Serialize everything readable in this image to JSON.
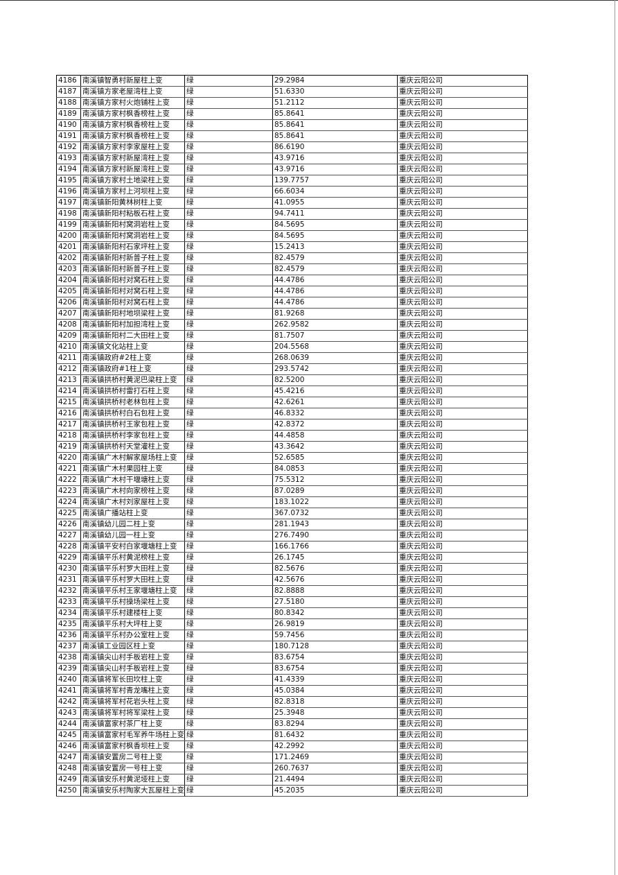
{
  "table": {
    "rows": [
      [
        "4186",
        "南溪镇智勇村新屋柱上变",
        "绿",
        "29.2984",
        "重庆云阳公司"
      ],
      [
        "4187",
        "南溪镇方家老屋湾柱上变",
        "绿",
        "51.6330",
        "重庆云阳公司"
      ],
      [
        "4188",
        "南溪镇方家村火炮铺柱上变",
        "绿",
        "51.2112",
        "重庆云阳公司"
      ],
      [
        "4189",
        "南溪镇方家村枫香榜柱上变",
        "绿",
        "85.8641",
        "重庆云阳公司"
      ],
      [
        "4190",
        "南溪镇方家村枫香榜柱上变",
        "绿",
        "85.8641",
        "重庆云阳公司"
      ],
      [
        "4191",
        "南溪镇方家村枫香榜柱上变",
        "绿",
        "85.8641",
        "重庆云阳公司"
      ],
      [
        "4192",
        "南溪镇方家村李家屋柱上变",
        "绿",
        "86.6190",
        "重庆云阳公司"
      ],
      [
        "4193",
        "南溪镇方家村新屋湾柱上变",
        "绿",
        "43.9716",
        "重庆云阳公司"
      ],
      [
        "4194",
        "南溪镇方家村新屋湾柱上变",
        "绿",
        "43.9716",
        "重庆云阳公司"
      ],
      [
        "4195",
        "南溪镇方家村土地梁柱上变",
        "绿",
        "139.7757",
        "重庆云阳公司"
      ],
      [
        "4196",
        "南溪镇方家村上河坝柱上变",
        "绿",
        "66.6034",
        "重庆云阳公司"
      ],
      [
        "4197",
        "南溪镇新阳黄林树柱上变",
        "绿",
        "41.0955",
        "重庆云阳公司"
      ],
      [
        "4198",
        "南溪镇新阳村粘板石柱上变",
        "绿",
        "94.7411",
        "重庆云阳公司"
      ],
      [
        "4199",
        "南溪镇新阳村窝洞岩柱上变",
        "绿",
        "84.5695",
        "重庆云阳公司"
      ],
      [
        "4200",
        "南溪镇新阳村窝洞岩柱上变",
        "绿",
        "84.5695",
        "重庆云阳公司"
      ],
      [
        "4201",
        "南溪镇新阳村石家坪柱上变",
        "绿",
        "15.2413",
        "重庆云阳公司"
      ],
      [
        "4202",
        "南溪镇新阳村新普子柱上变",
        "绿",
        "82.4579",
        "重庆云阳公司"
      ],
      [
        "4203",
        "南溪镇新阳村新普子柱上变",
        "绿",
        "82.4579",
        "重庆云阳公司"
      ],
      [
        "4204",
        "南溪镇新阳村对窝石柱上变",
        "绿",
        "44.4786",
        "重庆云阳公司"
      ],
      [
        "4205",
        "南溪镇新阳村对窝石柱上变",
        "绿",
        "44.4786",
        "重庆云阳公司"
      ],
      [
        "4206",
        "南溪镇新阳村对窝石柱上变",
        "绿",
        "44.4786",
        "重庆云阳公司"
      ],
      [
        "4207",
        "南溪镇新阳村地坝梁柱上变",
        "绿",
        "81.9268",
        "重庆云阳公司"
      ],
      [
        "4208",
        "南溪镇新阳村加担湾柱上变",
        "绿",
        "262.9582",
        "重庆云阳公司"
      ],
      [
        "4209",
        "南溪镇新阳村二大田柱上变",
        "绿",
        "81.7507",
        "重庆云阳公司"
      ],
      [
        "4210",
        "南溪镇文化站柱上变",
        "绿",
        "204.5568",
        "重庆云阳公司"
      ],
      [
        "4211",
        "南溪镇政府#2柱上变",
        "绿",
        "268.0639",
        "重庆云阳公司"
      ],
      [
        "4212",
        "南溪镇政府#1柱上变",
        "绿",
        "293.5742",
        "重庆云阳公司"
      ],
      [
        "4213",
        "南溪镇拱桥村黄泥巴梁柱上变",
        "绿",
        "82.5200",
        "重庆云阳公司"
      ],
      [
        "4214",
        "南溪镇拱桥村雷打石柱上变",
        "绿",
        "45.4216",
        "重庆云阳公司"
      ],
      [
        "4215",
        "南溪镇拱桥村老林包柱上变",
        "绿",
        "42.6261",
        "重庆云阳公司"
      ],
      [
        "4216",
        "南溪镇拱桥村白石包柱上变",
        "绿",
        "46.8332",
        "重庆云阳公司"
      ],
      [
        "4217",
        "南溪镇拱桥村王家包柱上变",
        "绿",
        "42.8372",
        "重庆云阳公司"
      ],
      [
        "4218",
        "南溪镇拱桥村李家包柱上变",
        "绿",
        "44.4858",
        "重庆云阳公司"
      ],
      [
        "4219",
        "南溪镇拱桥村天堂灌柱上变",
        "绿",
        "43.3642",
        "重庆云阳公司"
      ],
      [
        "4220",
        "南溪镇广木村解家屋场柱上变",
        "绿",
        "52.6585",
        "重庆云阳公司"
      ],
      [
        "4221",
        "南溪镇广木村果园柱上变",
        "绿",
        "84.0853",
        "重庆云阳公司"
      ],
      [
        "4222",
        "南溪镇广木村干堰塘柱上变",
        "绿",
        "75.5312",
        "重庆云阳公司"
      ],
      [
        "4223",
        "南溪镇广木村向家榜柱上变",
        "绿",
        "87.0289",
        "重庆云阳公司"
      ],
      [
        "4224",
        "南溪镇广木村刘家屋柱上变",
        "绿",
        "183.1022",
        "重庆云阳公司"
      ],
      [
        "4225",
        "南溪镇广播站柱上变",
        "绿",
        "367.0732",
        "重庆云阳公司"
      ],
      [
        "4226",
        "南溪镇幼儿园二柱上变",
        "绿",
        "281.1943",
        "重庆云阳公司"
      ],
      [
        "4227",
        "南溪镇幼儿园一柱上变",
        "绿",
        "276.7490",
        "重庆云阳公司"
      ],
      [
        "4228",
        "南溪镇平安村白家堰塘柱上变",
        "绿",
        "166.1766",
        "重庆云阳公司"
      ],
      [
        "4229",
        "南溪镇平乐村黄泥榜柱上变",
        "绿",
        "26.1745",
        "重庆云阳公司"
      ],
      [
        "4230",
        "南溪镇平乐村罗大田柱上变",
        "绿",
        "82.5676",
        "重庆云阳公司"
      ],
      [
        "4231",
        "南溪镇平乐村罗大田柱上变",
        "绿",
        "42.5676",
        "重庆云阳公司"
      ],
      [
        "4232",
        "南溪镇平乐村王家堰塘柱上变",
        "绿",
        "82.8888",
        "重庆云阳公司"
      ],
      [
        "4233",
        "南溪镇平乐村操场梁柱上变",
        "绿",
        "27.5180",
        "重庆云阳公司"
      ],
      [
        "4234",
        "南溪镇平乐村建楼柱上变",
        "绿",
        "80.8342",
        "重庆云阳公司"
      ],
      [
        "4235",
        "南溪镇平乐村大坪柱上变",
        "绿",
        "26.9819",
        "重庆云阳公司"
      ],
      [
        "4236",
        "南溪镇平乐村办公室柱上变",
        "绿",
        "59.7456",
        "重庆云阳公司"
      ],
      [
        "4237",
        "南溪镇工业园区柱上变",
        "绿",
        "180.7128",
        "重庆云阳公司"
      ],
      [
        "4238",
        "南溪镇尖山村手板岩柱上变",
        "绿",
        "83.6754",
        "重庆云阳公司"
      ],
      [
        "4239",
        "南溪镇尖山村手板岩柱上变",
        "绿",
        "83.6754",
        "重庆云阳公司"
      ],
      [
        "4240",
        "南溪镇将军长田坎柱上变",
        "绿",
        "41.4339",
        "重庆云阳公司"
      ],
      [
        "4241",
        "南溪镇将军村青龙嘴柱上变",
        "绿",
        "45.0384",
        "重庆云阳公司"
      ],
      [
        "4242",
        "南溪镇将军村花岩头柱上变",
        "绿",
        "82.8318",
        "重庆云阳公司"
      ],
      [
        "4243",
        "南溪镇将军村将军梁柱上变",
        "绿",
        "25.3948",
        "重庆云阳公司"
      ],
      [
        "4244",
        "南溪镇富家村茶厂柱上变",
        "绿",
        "83.8294",
        "重庆云阳公司"
      ],
      [
        "4245",
        "南溪镇富家村毛军养牛场柱上变",
        "绿",
        "81.6432",
        "重庆云阳公司"
      ],
      [
        "4246",
        "南溪镇富家村枫香坝柱上变",
        "绿",
        "42.2992",
        "重庆云阳公司"
      ],
      [
        "4247",
        "南溪镇安置房二号柱上变",
        "绿",
        "171.2469",
        "重庆云阳公司"
      ],
      [
        "4248",
        "南溪镇安置房一号柱上变",
        "绿",
        "260.7637",
        "重庆云阳公司"
      ],
      [
        "4249",
        "南溪镇安乐村黄泥垭柱上变",
        "绿",
        "21.4494",
        "重庆云阳公司"
      ],
      [
        "4250",
        "南溪镇安乐村陶家大瓦屋柱上变",
        "绿",
        "45.2035",
        "重庆云阳公司"
      ]
    ]
  }
}
